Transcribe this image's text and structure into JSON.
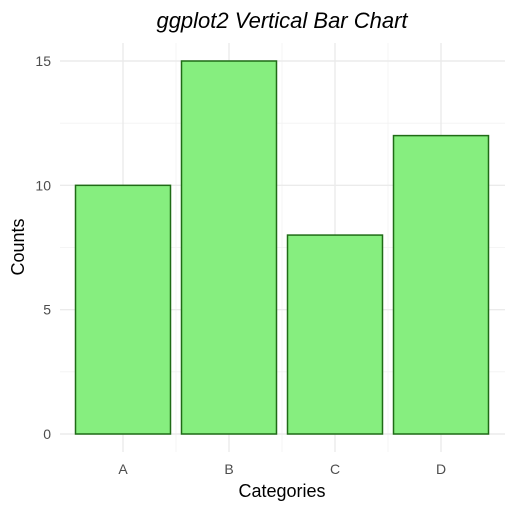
{
  "chart_data": {
    "type": "bar",
    "title": "ggplot2 Vertical Bar Chart",
    "xlabel": "Categories",
    "ylabel": "Counts",
    "categories": [
      "A",
      "B",
      "C",
      "D"
    ],
    "values": [
      10,
      15,
      8,
      12
    ],
    "ylim": [
      0,
      15
    ],
    "yticks": [
      0,
      5,
      10,
      15
    ],
    "grid": true,
    "legend": "none",
    "colors": {
      "bar_fill": "#86ee7f",
      "bar_stroke": "#1f6b16",
      "grid_major": "#ebebeb",
      "grid_minor": "#f2f2f2",
      "tick_text": "#4d4d4d"
    }
  }
}
